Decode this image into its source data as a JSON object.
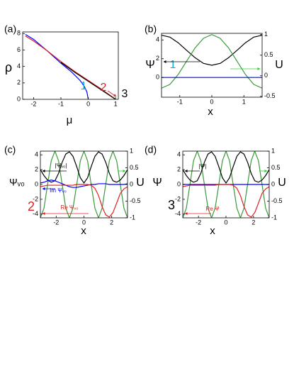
{
  "chart_data": [
    {
      "type": "line",
      "panel_label": "(a)",
      "xlabel": "μ",
      "ylabel": "ρ",
      "xlim": [
        -2.4,
        1.1
      ],
      "xticks": [
        -2,
        -1,
        0,
        1
      ],
      "ylim": [
        0,
        8.2
      ],
      "yticks": [
        0,
        2,
        4,
        6,
        8
      ],
      "series": [
        {
          "color": "#0000ff",
          "x": [
            -2.3,
            -2,
            -1.5,
            -1,
            -0.6,
            -0.3,
            -0.15,
            -0.05,
            0
          ],
          "values": [
            7.9,
            7.3,
            5.9,
            4.4,
            3.3,
            2.3,
            1.6,
            0.9,
            0
          ]
        },
        {
          "color": "#d62020",
          "x": [
            -2.3,
            -2,
            -1.5,
            -1,
            -0.5,
            0,
            0.5,
            1
          ],
          "values": [
            7.7,
            7.1,
            5.9,
            4.6,
            3.4,
            2.3,
            1.2,
            0
          ]
        },
        {
          "color": "#000000",
          "x": [
            -1,
            -0.5,
            0,
            0.5,
            1
          ],
          "values": [
            4.5,
            3.3,
            2.2,
            1.1,
            0
          ]
        }
      ],
      "annotations": [
        "1",
        "2",
        "3"
      ]
    },
    {
      "type": "line",
      "panel_label": "(b)",
      "xlabel": "x",
      "ylabel": "Ψ",
      "y2label": "U",
      "xlim": [
        -1.57,
        1.57
      ],
      "xticks": [
        -1,
        0,
        1
      ],
      "ylim": [
        -2.1,
        4.7
      ],
      "yticks": [
        0,
        2,
        4
      ],
      "y2lim": [
        -0.52,
        1.03
      ],
      "y2ticks": [
        -0.5,
        0,
        0.5,
        1
      ],
      "series": [
        {
          "color": "#000000",
          "x": [
            -1.57,
            -1.31,
            -1.05,
            -0.79,
            -0.52,
            -0.26,
            0,
            0.26,
            0.52,
            0.79,
            1.05,
            1.31,
            1.57
          ],
          "values": [
            4.5,
            4.3,
            3.7,
            2.9,
            2.1,
            1.5,
            1.3,
            1.5,
            2.1,
            2.9,
            3.7,
            4.3,
            4.5
          ]
        },
        {
          "color": "#3a9a3a",
          "axis": "y2",
          "x": [
            -1.57,
            -1.31,
            -1.05,
            -0.79,
            -0.52,
            -0.26,
            0,
            0.26,
            0.52,
            0.79,
            1.05,
            1.31,
            1.57
          ],
          "values": [
            -0.3,
            -0.21,
            0.03,
            0.35,
            0.68,
            0.91,
            1.0,
            0.91,
            0.68,
            0.35,
            0.03,
            -0.21,
            -0.3
          ]
        },
        {
          "color": "#0000ff",
          "x": [
            -1.57,
            1.57
          ],
          "values": [
            0,
            0
          ]
        }
      ],
      "annotations": [
        "1"
      ]
    },
    {
      "type": "line",
      "panel_label": "(c)",
      "xlabel": "x",
      "ylabel": "Ψᵥ₀",
      "y2label": "U",
      "xlim": [
        -3.14,
        3.14
      ],
      "xticks": [
        -2,
        0,
        2
      ],
      "ylim": [
        -4.5,
        4.5
      ],
      "yticks": [
        -4,
        -2,
        0,
        2,
        4
      ],
      "y2lim": [
        -1,
        1
      ],
      "y2ticks": [
        -1,
        -0.5,
        0,
        0.5,
        1
      ],
      "series": [
        {
          "color": "#3a9a3a",
          "axis": "y2",
          "x": [
            -3.14,
            -2.88,
            -2.62,
            -2.36,
            -2.09,
            -1.83,
            -1.57,
            -1.31,
            -1.05,
            -0.79,
            -0.52,
            -0.26,
            0,
            0.26,
            0.52,
            0.79,
            1.05,
            1.31,
            1.57,
            1.83,
            2.09,
            2.36,
            2.62,
            2.88,
            3.14
          ],
          "values": [
            -1,
            -0.71,
            0,
            0.71,
            1,
            0.71,
            0,
            -0.71,
            -1,
            -0.71,
            0,
            0.71,
            1,
            0.71,
            0,
            -0.71,
            -1,
            -0.71,
            0,
            0.71,
            1,
            0.71,
            0,
            -0.71,
            -1
          ]
        },
        {
          "color": "#000000",
          "x": [
            -3.14,
            -2.88,
            -2.62,
            -2.36,
            -2.09,
            -1.83,
            -1.57,
            -1.31,
            -1.05,
            -0.79,
            -0.52,
            -0.26,
            0,
            0.26,
            0.52,
            0.79,
            1.05,
            1.31,
            1.57,
            1.83,
            2.09,
            2.36,
            2.62,
            2.88,
            3.14
          ],
          "values": [
            2.0,
            1.2,
            0.6,
            0.3,
            0.5,
            1.5,
            3.0,
            4.1,
            4.4,
            3.8,
            2.4,
            0.9,
            0.2,
            0.9,
            2.4,
            3.8,
            4.4,
            4.1,
            3.0,
            1.5,
            0.5,
            0.3,
            0.6,
            1.2,
            2.0
          ]
        },
        {
          "color": "#0000ff",
          "x": [
            -3.14,
            -2.88,
            -2.62,
            -2.36,
            -2.09,
            -1.83,
            -1.57,
            -1.31,
            -1.05,
            -0.79,
            -0.52,
            -0.26,
            0,
            0.26,
            0.52,
            0.79,
            1.05,
            1.31,
            1.57,
            1.83,
            2.09,
            2.36,
            2.62,
            2.88,
            3.14
          ],
          "values": [
            0.2,
            0.3,
            0.5,
            0.6,
            0.5,
            0.3,
            0.1,
            -0.1,
            -0.3,
            -0.4,
            -0.4,
            -0.3,
            -0.2,
            -0.1,
            0,
            0,
            0.1,
            0.1,
            0.1,
            0,
            0,
            0,
            0,
            0,
            0.1
          ]
        },
        {
          "color": "#e02020",
          "x": [
            -3.14,
            -2.88,
            -2.62,
            -2.36,
            -2.09,
            -1.83,
            -1.57,
            -1.31,
            -1.05,
            -0.79,
            -0.52,
            -0.26,
            0,
            0.26,
            0.52,
            0.79,
            1.05,
            1.31,
            1.57,
            1.83,
            2.09,
            2.36,
            2.62,
            2.88,
            3.14
          ],
          "values": [
            -0.3,
            -0.2,
            -0.1,
            -0.1,
            -0.1,
            -0.1,
            -0.1,
            -0.1,
            -0.1,
            -0.1,
            0,
            0,
            0,
            0,
            -0.1,
            -0.5,
            -1.5,
            -3,
            -4.1,
            -4.4,
            -3.8,
            -2.5,
            -1.2,
            -0.6,
            -0.3
          ]
        }
      ],
      "annotations": [
        "|Ψᵥ₀|",
        "Im Ψᵥ₀",
        "Re Ψᵥ₀",
        "2"
      ]
    },
    {
      "type": "line",
      "panel_label": "(d)",
      "xlabel": "x",
      "ylabel": "Ψ",
      "y2label": "U",
      "xlim": [
        -3.14,
        3.14
      ],
      "xticks": [
        -2,
        0,
        2
      ],
      "ylim": [
        -4.5,
        4.5
      ],
      "yticks": [
        -4,
        -2,
        0,
        2,
        4
      ],
      "y2lim": [
        -1,
        1
      ],
      "y2ticks": [
        -1,
        -0.5,
        0,
        0.5,
        1
      ],
      "series": [
        {
          "color": "#3a9a3a",
          "axis": "y2",
          "x": [
            -3.14,
            -2.88,
            -2.62,
            -2.36,
            -2.09,
            -1.83,
            -1.57,
            -1.31,
            -1.05,
            -0.79,
            -0.52,
            -0.26,
            0,
            0.26,
            0.52,
            0.79,
            1.05,
            1.31,
            1.57,
            1.83,
            2.09,
            2.36,
            2.62,
            2.88,
            3.14
          ],
          "values": [
            -1,
            -0.71,
            0,
            0.71,
            1,
            0.71,
            0,
            -0.71,
            -1,
            -0.71,
            0,
            0.71,
            1,
            0.71,
            0,
            -0.71,
            -1,
            -0.71,
            0,
            0.71,
            1,
            0.71,
            0,
            -0.71,
            -1
          ]
        },
        {
          "color": "#000000",
          "x": [
            -3.14,
            -2.88,
            -2.62,
            -2.36,
            -2.09,
            -1.83,
            -1.57,
            -1.31,
            -1.05,
            -0.79,
            -0.52,
            -0.26,
            0,
            0.26,
            0.52,
            0.79,
            1.05,
            1.31,
            1.57,
            1.83,
            2.09,
            2.36,
            2.62,
            2.88,
            3.14
          ],
          "values": [
            2.0,
            1.2,
            0.6,
            0.3,
            0.5,
            1.5,
            3.0,
            4.1,
            4.4,
            3.8,
            2.4,
            0.9,
            0.2,
            0.9,
            2.4,
            3.8,
            4.4,
            4.1,
            3.0,
            1.5,
            0.5,
            0.3,
            0.6,
            1.2,
            2.0
          ]
        },
        {
          "color": "#0000ff",
          "x": [
            -3.14,
            3.14
          ],
          "values": [
            0,
            0
          ]
        },
        {
          "color": "#e02020",
          "x": [
            -3.14,
            -2.88,
            -2.62,
            -2.36,
            -2.09,
            -1.83,
            -1.57,
            -1.31,
            -1.05,
            -0.79,
            -0.52,
            -0.26,
            0,
            0.26,
            0.52,
            0.79,
            1.05,
            1.31,
            1.57,
            1.83,
            2.09,
            2.36,
            2.62,
            2.88,
            3.14
          ],
          "values": [
            -0.3,
            -0.2,
            -0.1,
            -0.1,
            -0.1,
            -0.1,
            -0.1,
            -0.1,
            -0.1,
            -0.1,
            0,
            0,
            0,
            0,
            -0.1,
            -0.5,
            -1.5,
            -3,
            -4.1,
            -4.4,
            -3.8,
            -2.5,
            -1.2,
            -0.6,
            -0.3
          ]
        }
      ],
      "annotations": [
        "|Ψ|",
        "Re Ψ",
        "3"
      ]
    }
  ]
}
